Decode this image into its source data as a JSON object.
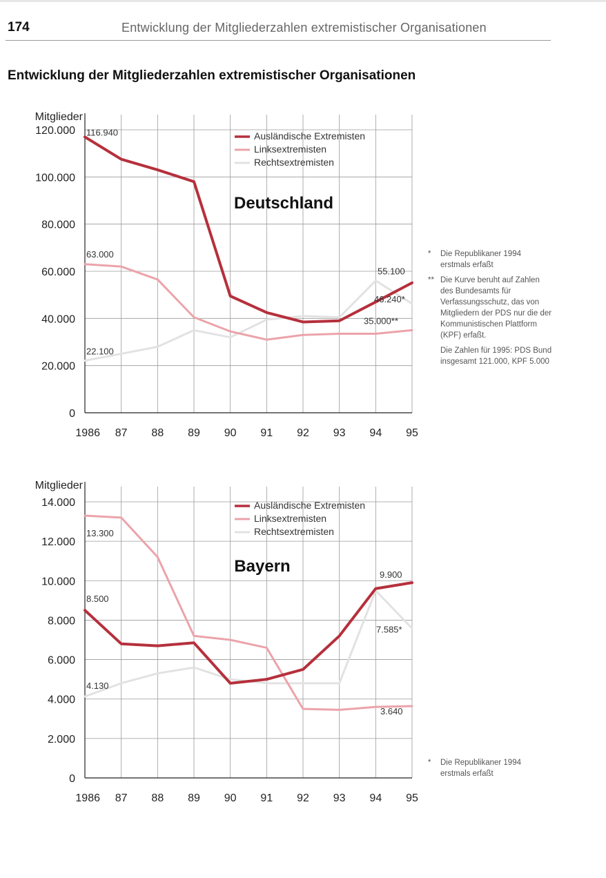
{
  "header": {
    "page_number": "174",
    "running_title": "Entwicklung der Mitgliederzahlen extremistischer Organisationen"
  },
  "main_title": "Entwicklung der Mitgliederzahlen extremistischer Organisationen",
  "colors": {
    "auslaendische": "#b5303c",
    "links": "#eba3aa",
    "rechts": "#e2e2e2",
    "grid": "#9a9a9a",
    "axis": "#222222"
  },
  "chart_data": [
    {
      "type": "line",
      "title": "Deutschland",
      "ylabel": "Mitglieder",
      "xlabel": "",
      "ylim": [
        0,
        120000
      ],
      "yticks": [
        0,
        20000,
        40000,
        60000,
        80000,
        100000,
        120000
      ],
      "ytick_labels": [
        "0",
        "20.000",
        "40.000",
        "60.000",
        "80.000",
        "100.000",
        "120.000"
      ],
      "categories": [
        "1986",
        "87",
        "88",
        "89",
        "90",
        "91",
        "92",
        "93",
        "94",
        "95"
      ],
      "legend_position": "top-center",
      "grid": true,
      "series": [
        {
          "name": "Ausländische Extremisten",
          "color_key": "auslaendische",
          "values": [
            116940,
            107500,
            103000,
            98000,
            49500,
            42500,
            38500,
            39000,
            47000,
            55100
          ]
        },
        {
          "name": "Linksextremisten",
          "color_key": "links",
          "values": [
            63000,
            62000,
            56500,
            40500,
            34500,
            31000,
            33000,
            33500,
            33500,
            35000
          ]
        },
        {
          "name": "Rechtsextremisten",
          "color_key": "rechts",
          "values": [
            22100,
            25000,
            28000,
            35000,
            32000,
            39500,
            41000,
            40500,
            56000,
            46240
          ]
        }
      ],
      "data_labels": [
        {
          "text": "116.940",
          "series": 0,
          "index": 0
        },
        {
          "text": "63.000",
          "series": 1,
          "index": 0
        },
        {
          "text": "22.100",
          "series": 2,
          "index": 0
        },
        {
          "text": "55.100",
          "series": 0,
          "index": 9
        },
        {
          "text": "46.240*",
          "series": 2,
          "index": 9
        },
        {
          "text": "35.000**",
          "series": 1,
          "index": 9
        }
      ]
    },
    {
      "type": "line",
      "title": "Bayern",
      "ylabel": "Mitglieder",
      "xlabel": "",
      "ylim": [
        0,
        14000
      ],
      "yticks": [
        0,
        2000,
        4000,
        6000,
        8000,
        10000,
        12000,
        14000
      ],
      "ytick_labels": [
        "0",
        "2.000",
        "4.000",
        "6.000",
        "8.000",
        "10.000",
        "12.000",
        "14.000"
      ],
      "categories": [
        "1986",
        "87",
        "88",
        "89",
        "90",
        "91",
        "92",
        "93",
        "94",
        "95"
      ],
      "legend_position": "top-center",
      "grid": true,
      "series": [
        {
          "name": "Ausländische Extremisten",
          "color_key": "auslaendische",
          "values": [
            8500,
            6800,
            6700,
            6850,
            4800,
            5000,
            5500,
            7200,
            9600,
            9900
          ]
        },
        {
          "name": "Linksextremisten",
          "color_key": "links",
          "values": [
            13300,
            13200,
            11200,
            7200,
            7000,
            6600,
            3500,
            3450,
            3600,
            3640
          ]
        },
        {
          "name": "Rechtsextremisten",
          "color_key": "rechts",
          "values": [
            4130,
            4800,
            5300,
            5600,
            5000,
            4800,
            4800,
            4800,
            9500,
            7585
          ]
        }
      ],
      "data_labels": [
        {
          "text": "13.300",
          "series": 1,
          "index": 0
        },
        {
          "text": "8.500",
          "series": 0,
          "index": 0
        },
        {
          "text": "4.130",
          "series": 2,
          "index": 0
        },
        {
          "text": "9.900",
          "series": 0,
          "index": 9
        },
        {
          "text": "7.585*",
          "series": 2,
          "index": 9
        },
        {
          "text": "3.640",
          "series": 1,
          "index": 9
        }
      ]
    }
  ],
  "notes_de": [
    {
      "mark": "*",
      "text": "Die Republikaner 1994 erstmals erfaßt"
    },
    {
      "mark": "**",
      "text": "Die Kurve beruht auf Zahlen des Bundesamts für Verfassungsschutz, das von Mitgliedern der PDS nur die der Kommunistischen Plattform (KPF) erfaßt."
    },
    {
      "mark": "",
      "text": "Die Zahlen für 1995: PDS Bund insgesamt 121.000, KPF 5.000"
    }
  ],
  "notes_by": [
    {
      "mark": "*",
      "text": "Die Republikaner 1994 erstmals erfaßt"
    }
  ]
}
